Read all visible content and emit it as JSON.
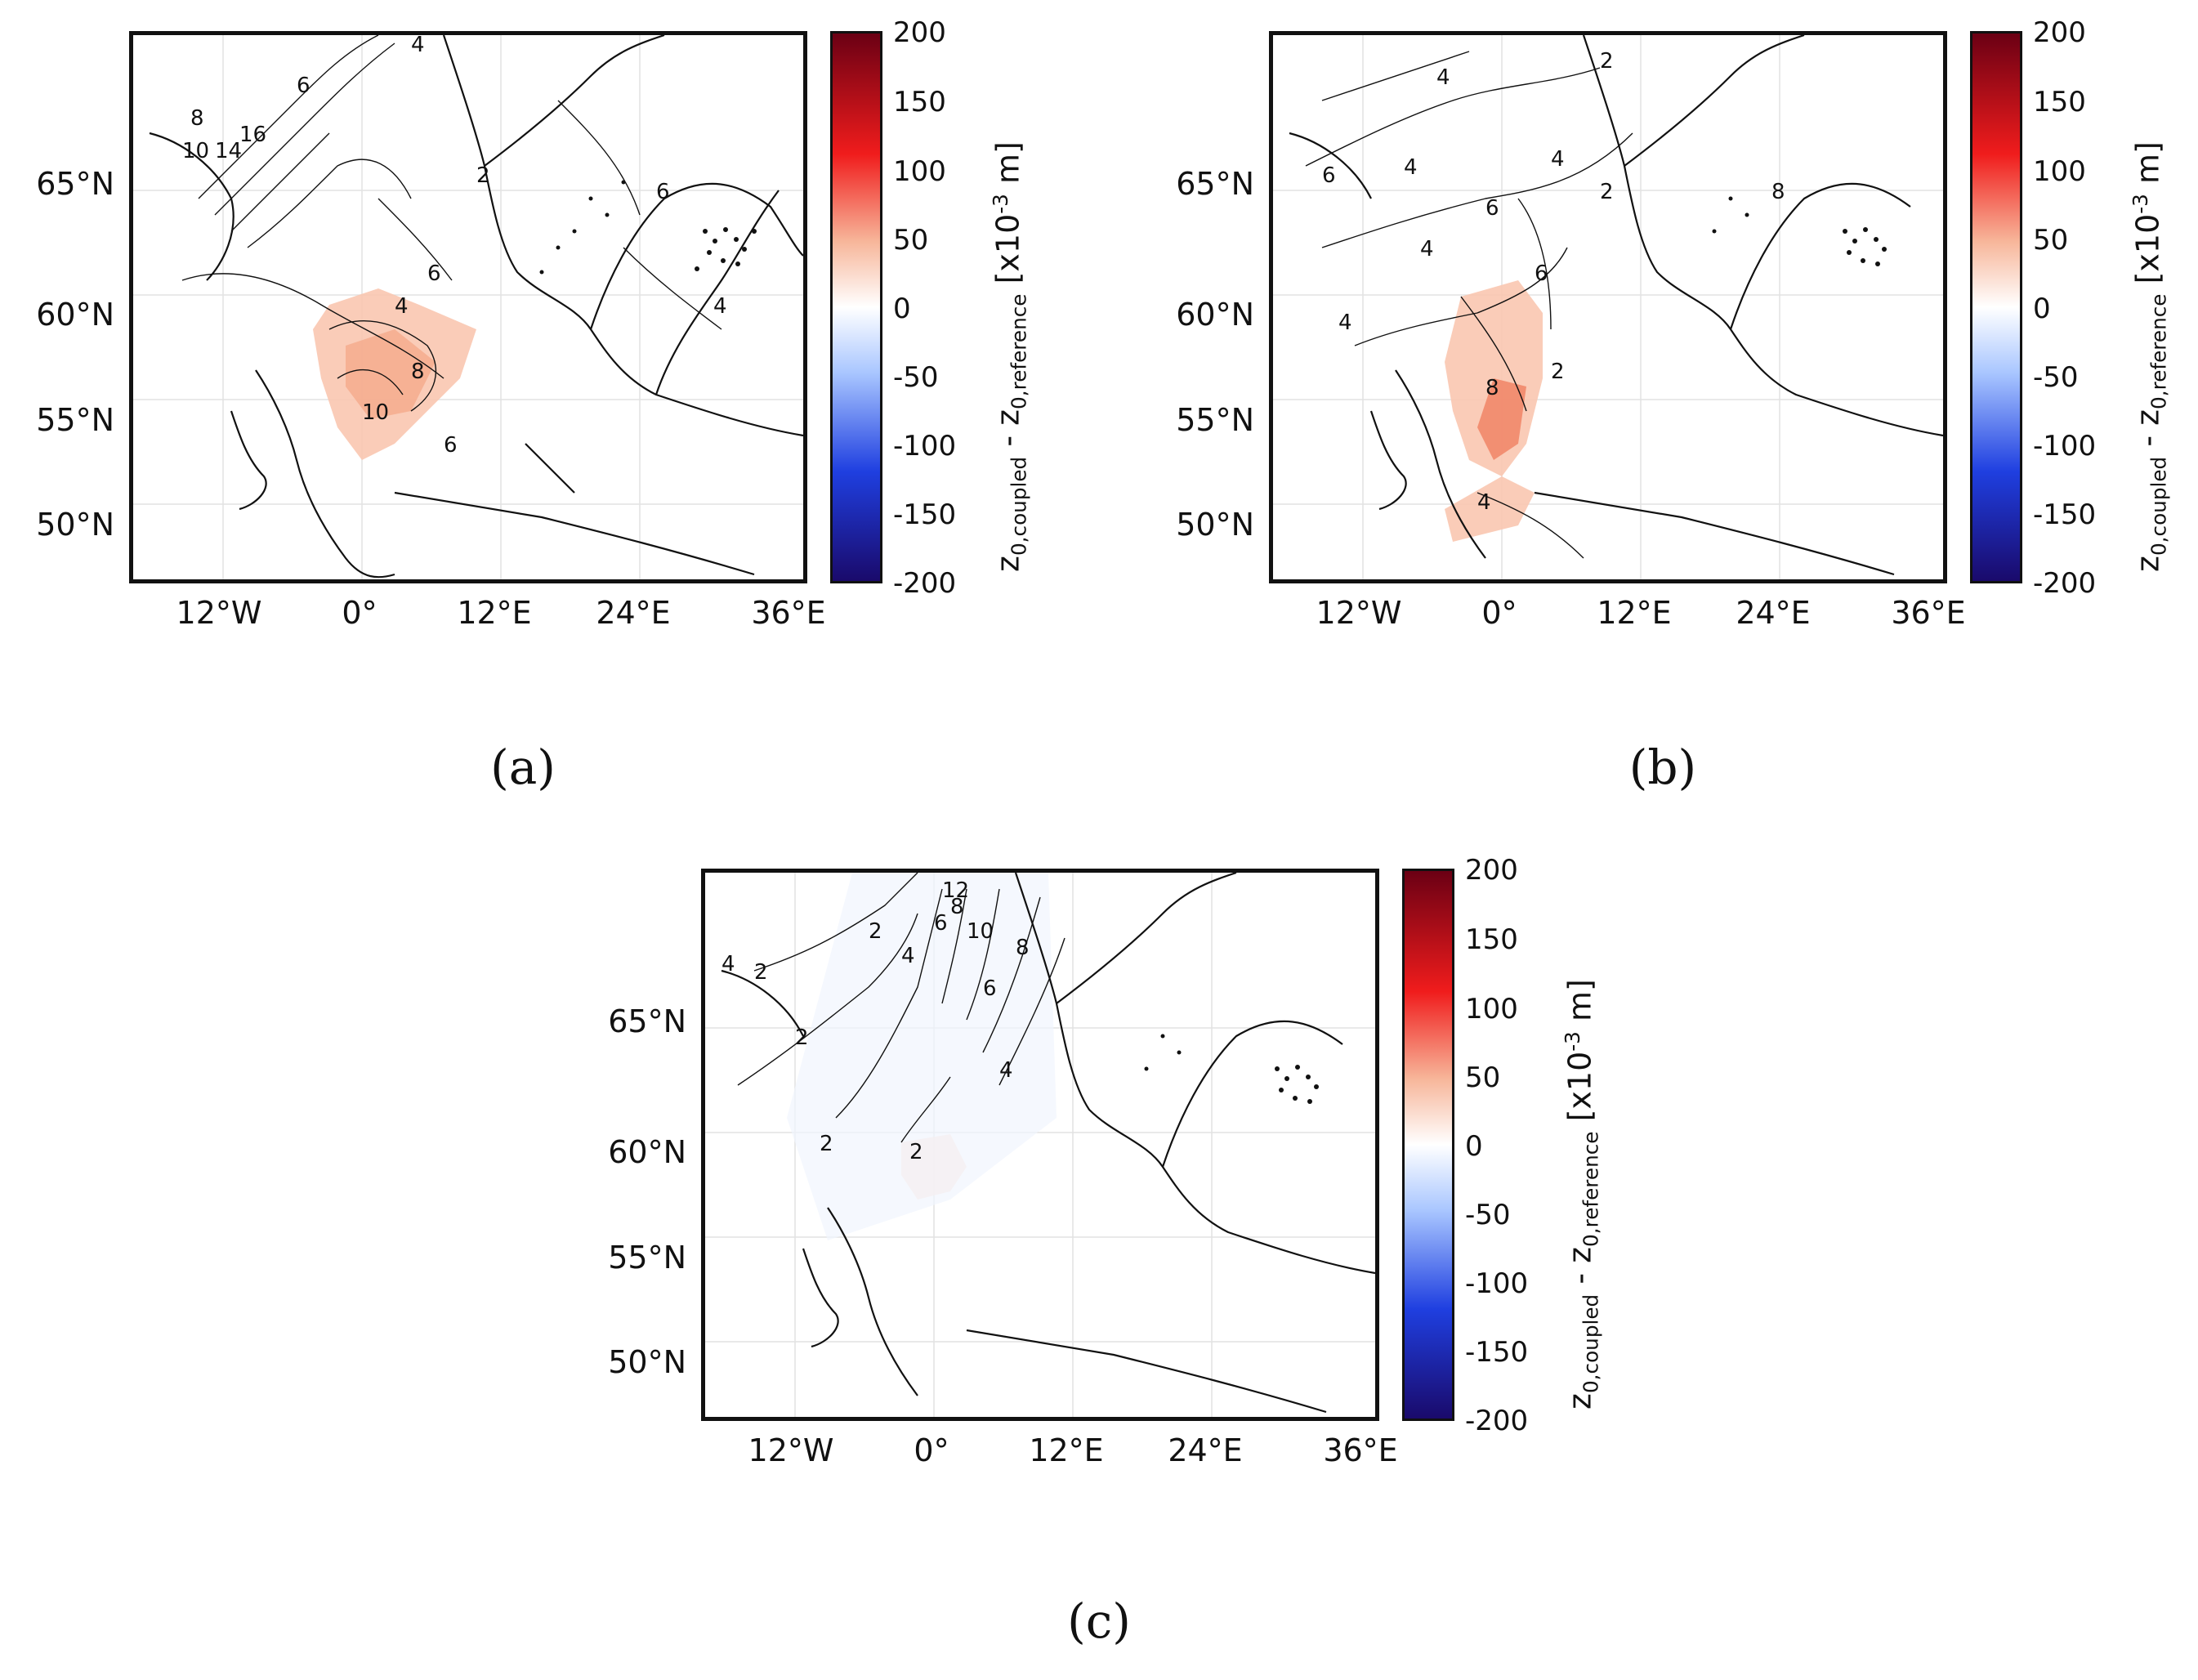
{
  "panels": [
    {
      "id": "a",
      "caption": "(a)"
    },
    {
      "id": "b",
      "caption": "(b)"
    },
    {
      "id": "c",
      "caption": "(c)"
    }
  ],
  "lat_labels": [
    "65°N",
    "60°N",
    "55°N",
    "50°N"
  ],
  "lon_labels": [
    "12°W",
    "0°",
    "12°E",
    "24°E",
    "36°E"
  ],
  "colorbar": {
    "ticks": [
      "200",
      "150",
      "100",
      "50",
      "0",
      "-50",
      "-100",
      "-150",
      "-200"
    ],
    "range": [
      -200,
      200
    ],
    "label_main": "z",
    "label_sub1": "0,coupled",
    "label_mid": " - z",
    "label_sub2": "0,reference",
    "unit_prefix": " [x10",
    "unit_exp": "-3",
    "unit_suffix": " m]",
    "colors": {
      "min": "#1a0a6b",
      "low": "#1f3fe0",
      "mid_low": "#a9c6ff",
      "zero": "#ffffff",
      "mid_high": "#f7b69a",
      "high": "#f01c1c",
      "max": "#6b0014"
    }
  },
  "contour_labels": {
    "a": [
      "4",
      "6",
      "8",
      "10",
      "14",
      "16",
      "2",
      "4",
      "6",
      "8",
      "10",
      "6",
      "6",
      "4"
    ],
    "b": [
      "4",
      "6",
      "2",
      "4",
      "6",
      "4",
      "2",
      "4",
      "6",
      "8",
      "4",
      "8",
      "2",
      "4"
    ],
    "c": [
      "2",
      "4",
      "2",
      "2",
      "4",
      "6",
      "8",
      "10",
      "12",
      "6",
      "8",
      "2",
      "4",
      "2"
    ]
  }
}
